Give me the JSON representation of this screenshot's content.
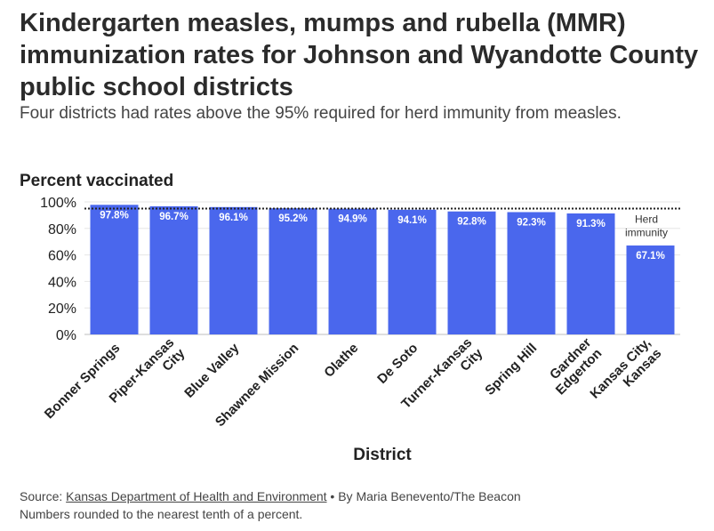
{
  "title": "Kindergarten measles, mumps and rubella (MMR) immunization rates for Johnson and Wyandotte County public school districts",
  "subtitle": "Four districts had rates above the 95% required for herd immunity from measles.",
  "chart_data": {
    "type": "bar",
    "ylabel": "Percent vaccinated",
    "xlabel": "District",
    "ylim": [
      0,
      100
    ],
    "yticks": [
      "0%",
      "20%",
      "40%",
      "60%",
      "80%",
      "100%"
    ],
    "ytick_values": [
      0,
      20,
      40,
      60,
      80,
      100
    ],
    "categories": [
      [
        "Bonner Springs"
      ],
      [
        "Piper-Kansas",
        "City"
      ],
      [
        "Blue Valley"
      ],
      [
        "Shawnee Mission"
      ],
      [
        "Olathe"
      ],
      [
        "De Soto"
      ],
      [
        "Turner-Kansas",
        "City"
      ],
      [
        "Spring Hill"
      ],
      [
        "Gardner",
        "Edgerton"
      ],
      [
        "Kansas City,",
        "Kansas"
      ]
    ],
    "values": [
      97.8,
      96.7,
      96.1,
      95.2,
      94.9,
      94.1,
      92.8,
      92.3,
      91.3,
      67.1
    ],
    "value_labels": [
      "97.8%",
      "96.7%",
      "96.1%",
      "95.2%",
      "94.9%",
      "94.1%",
      "92.8%",
      "92.3%",
      "91.3%",
      "67.1%"
    ],
    "reference_line": {
      "value": 95,
      "label_lines": [
        "Herd",
        "immunity"
      ]
    },
    "bar_color": "#4a67ed",
    "grid": true
  },
  "footer": {
    "source_prefix": "Source: ",
    "source_link": "Kansas Department of Health and Environment",
    "byline": " • By Maria Benevento/The Beacon",
    "note": "Numbers rounded to the nearest tenth of a percent."
  }
}
